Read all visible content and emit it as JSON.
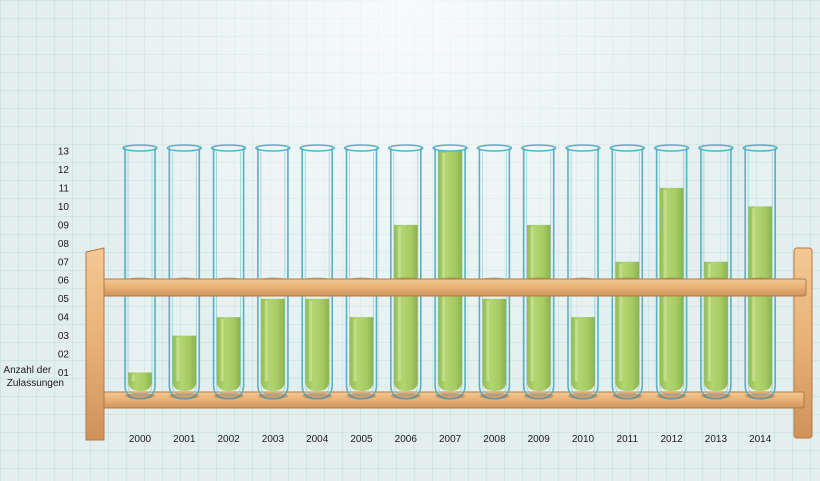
{
  "chart_data": {
    "type": "bar",
    "style": "test-tubes",
    "ylabel_lines": [
      "Anzahl der",
      "Zulassungen"
    ],
    "ytick_labels": [
      "01",
      "02",
      "03",
      "04",
      "05",
      "06",
      "07",
      "08",
      "09",
      "10",
      "11",
      "12",
      "13"
    ],
    "ylim": [
      0,
      13
    ],
    "categories": [
      "2000",
      "2001",
      "2002",
      "2003",
      "2004",
      "2005",
      "2006",
      "2007",
      "2008",
      "2009",
      "2010",
      "2011",
      "2012",
      "2013",
      "2014"
    ],
    "values": [
      1,
      3,
      4,
      5,
      5,
      4,
      9,
      13,
      5,
      9,
      4,
      7,
      11,
      7,
      10
    ],
    "grid": true,
    "legend": "none"
  },
  "colors": {
    "liquid": "#9cc44e",
    "liquid_light": "#c2df84",
    "glass": "#5bb0c4",
    "wood": "#e9b57c",
    "wood_dark": "#c88a4e"
  }
}
